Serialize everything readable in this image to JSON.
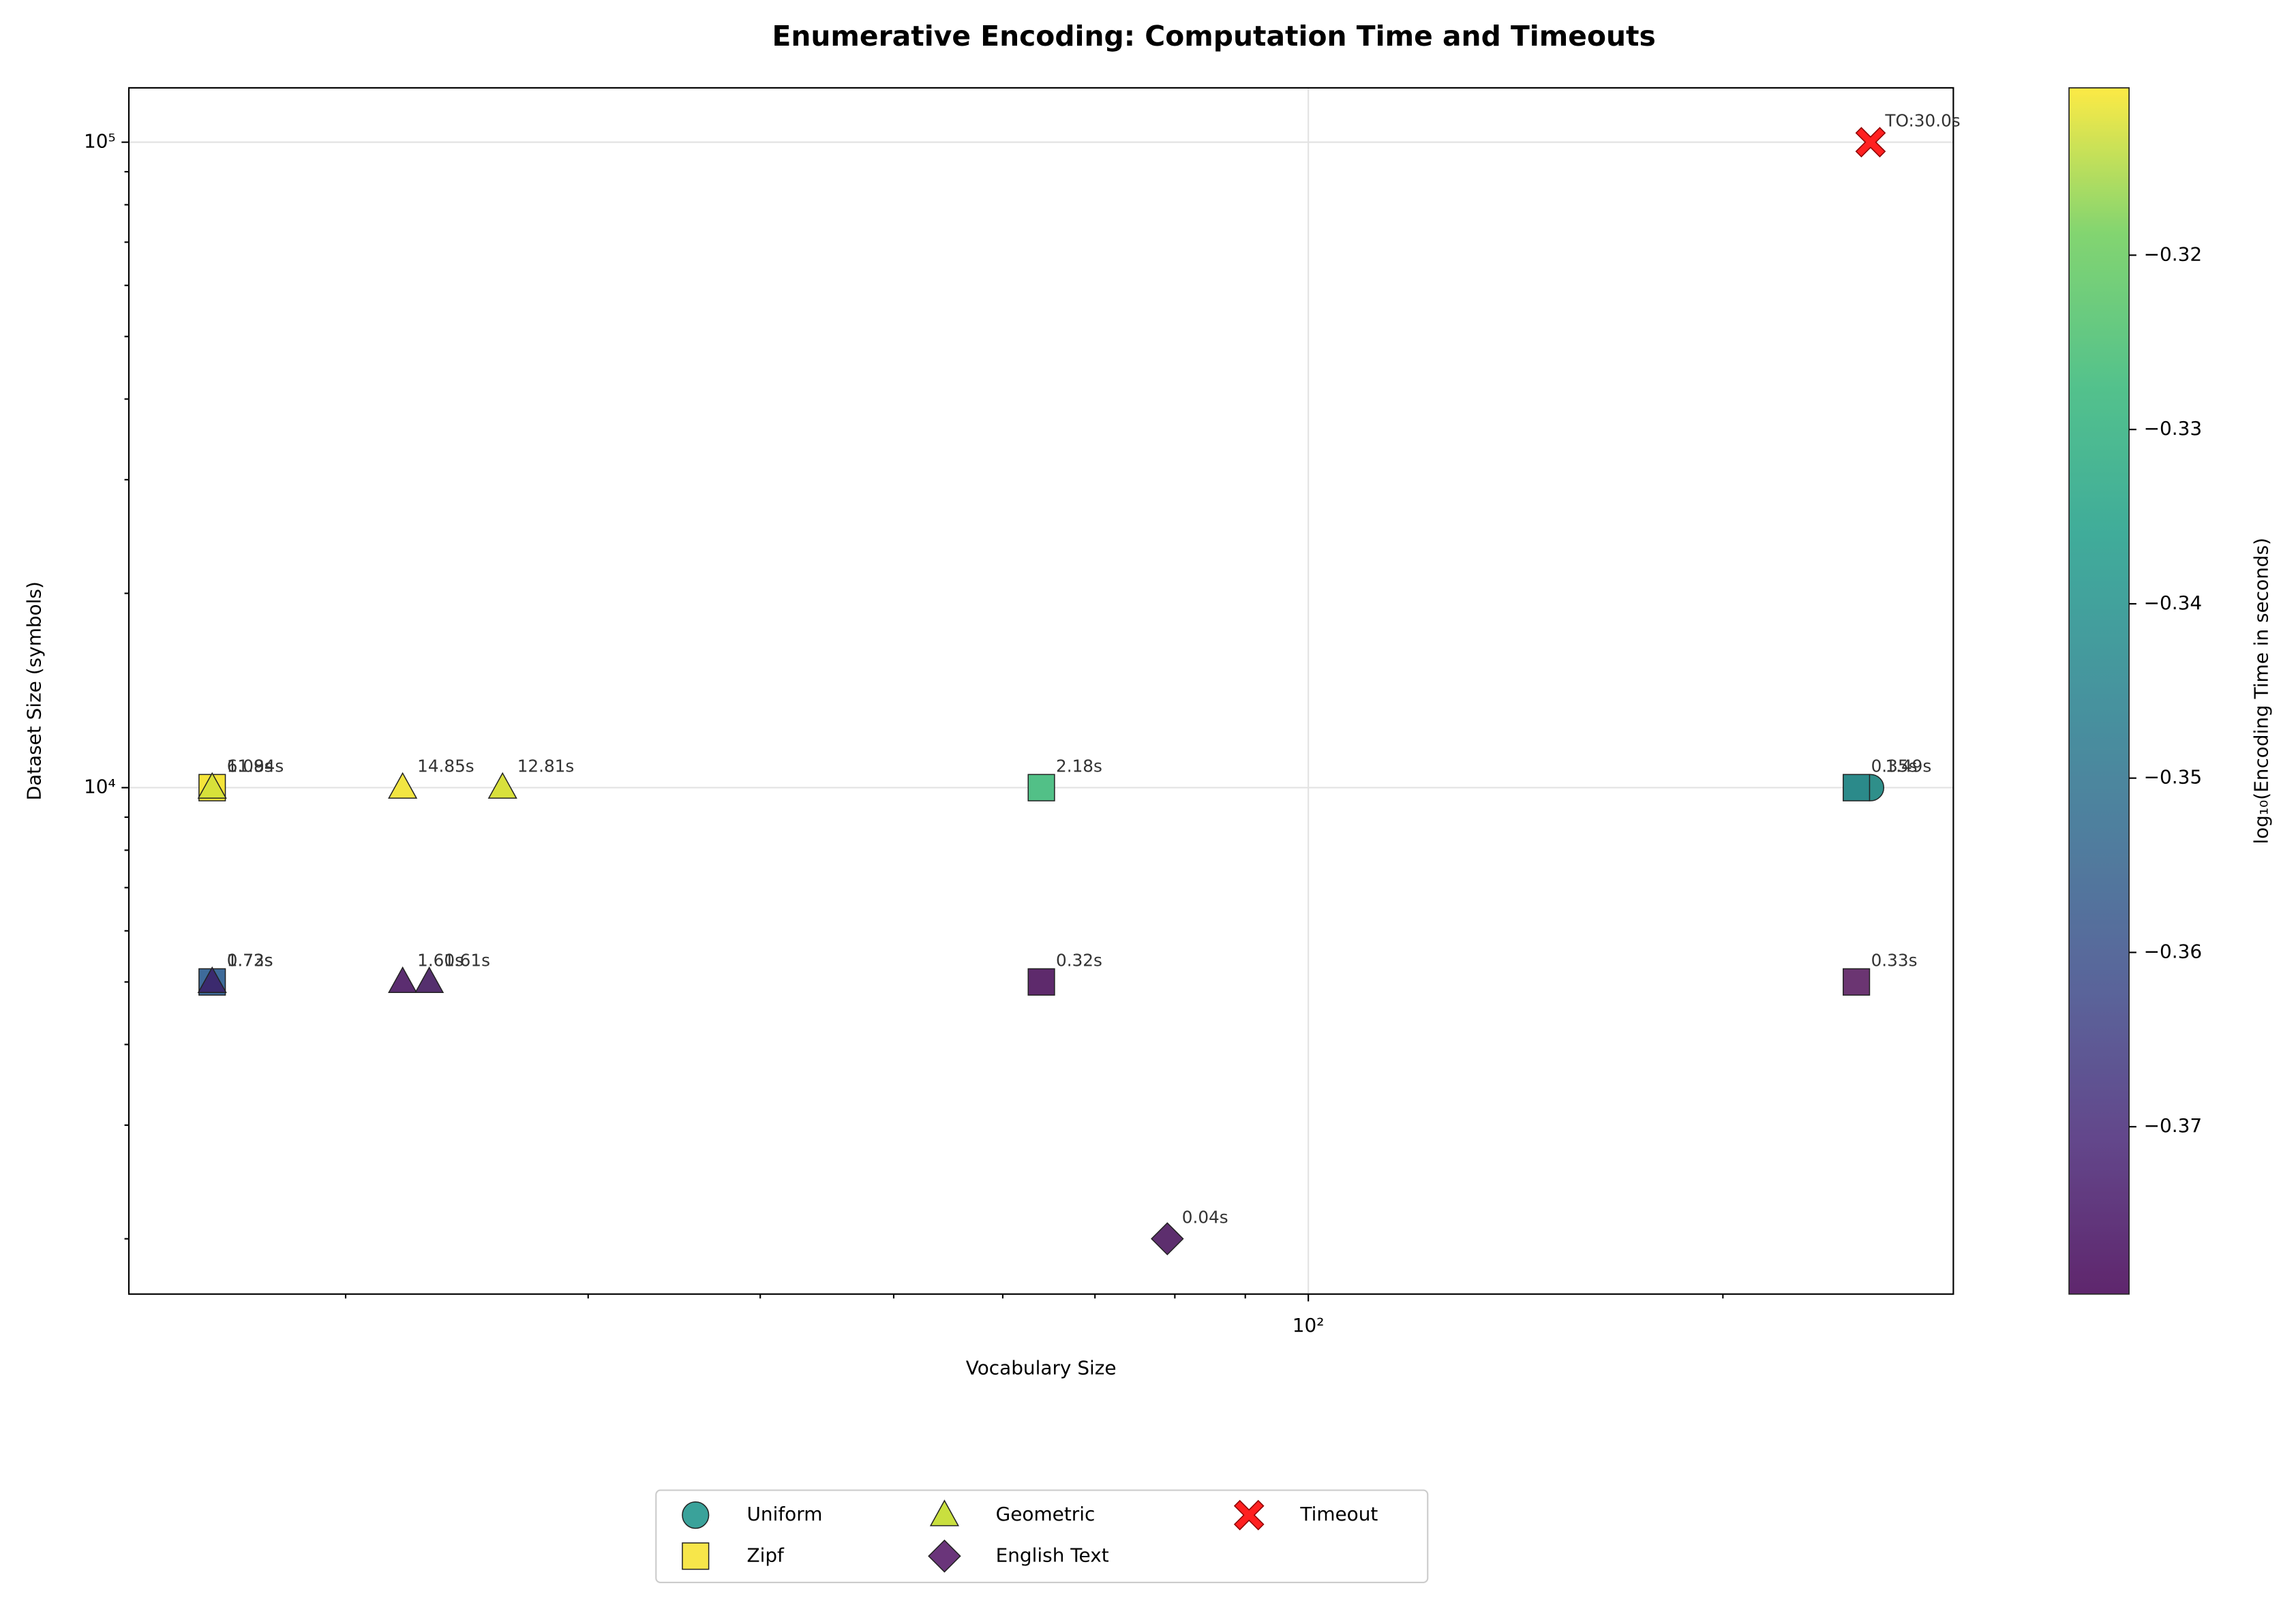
{
  "chart_data": {
    "type": "scatter",
    "title": "Enumerative Encoding: Computation Time and Timeouts",
    "x_label": "Vocabulary Size",
    "y_label": "Dataset Size (symbols)",
    "x_log": true,
    "y_log": true,
    "grid": true,
    "xlim": [
      13.92,
      294
    ],
    "ylim": [
      1642,
      121400
    ],
    "xticks": [
      {
        "value": 100,
        "label": "10²"
      }
    ],
    "xminor_ticks": [
      20,
      30,
      40,
      50,
      60,
      70,
      80,
      90,
      200
    ],
    "yticks": [
      {
        "value": 10000,
        "label": "10⁴"
      },
      {
        "value": 100000,
        "label": "10⁵"
      }
    ],
    "yminor_ticks": [
      2000,
      3000,
      4000,
      5000,
      6000,
      7000,
      8000,
      9000,
      20000,
      30000,
      40000,
      50000,
      60000,
      70000,
      80000,
      90000
    ],
    "series": [
      {
        "name": "Uniform",
        "marker": "circle",
        "color": "#3aa29a",
        "x": [
          256
        ],
        "y": [
          10000
        ],
        "point_colors": [
          "#2f8f8a"
        ],
        "annotations": [
          "1.49s"
        ]
      },
      {
        "name": "Zipf",
        "marker": "square",
        "color": "#f7e64a",
        "x": [
          16,
          16,
          64,
          64,
          250,
          250
        ],
        "y": [
          10000,
          5000,
          10000,
          5000,
          10000,
          5000
        ],
        "point_colors": [
          "#f5e43a",
          "#3e6b9a",
          "#52c087",
          "#5e2a6c",
          "#2b8a8a",
          "#6b3572"
        ],
        "annotations": [
          "11.94s",
          "0.73s",
          "2.18s",
          "0.32s",
          "0.35s",
          "0.33s"
        ]
      },
      {
        "name": "Geometric",
        "marker": "triangle",
        "color": "#c9df3f",
        "x": [
          16,
          16,
          22,
          26,
          22,
          23
        ],
        "y": [
          10000,
          5000,
          10000,
          10000,
          5000,
          5000
        ],
        "point_colors": [
          "#d7e13a",
          "#3b2a6e",
          "#f2e542",
          "#d8e03c",
          "#5b2d70",
          "#55306e"
        ],
        "annotations": [
          "6.08s",
          "1.72s",
          "14.85s",
          "12.81s",
          "1.60s",
          "1.61s"
        ]
      },
      {
        "name": "English Text",
        "marker": "diamond",
        "color": "#6a357a",
        "x": [
          79
        ],
        "y": [
          2000
        ],
        "point_colors": [
          "#5d2e6e"
        ],
        "annotations": [
          "0.04s"
        ]
      },
      {
        "name": "Timeout",
        "marker": "x",
        "color": "#ff2020",
        "x": [
          256
        ],
        "y": [
          100000
        ],
        "point_colors": [
          "#ff2020"
        ],
        "annotations": [
          "TO:30.0s"
        ]
      }
    ],
    "colorbar_label": "log₁₀(Encoding Time in seconds)",
    "clim": [
      -0.3796,
      -0.3104
    ],
    "cticks": [
      {
        "value": -0.37,
        "label": "−0.37"
      },
      {
        "value": -0.36,
        "label": "−0.36"
      },
      {
        "value": -0.35,
        "label": "−0.35"
      },
      {
        "value": -0.34,
        "label": "−0.34"
      },
      {
        "value": -0.33,
        "label": "−0.33"
      },
      {
        "value": -0.32,
        "label": "−0.32"
      }
    ]
  }
}
